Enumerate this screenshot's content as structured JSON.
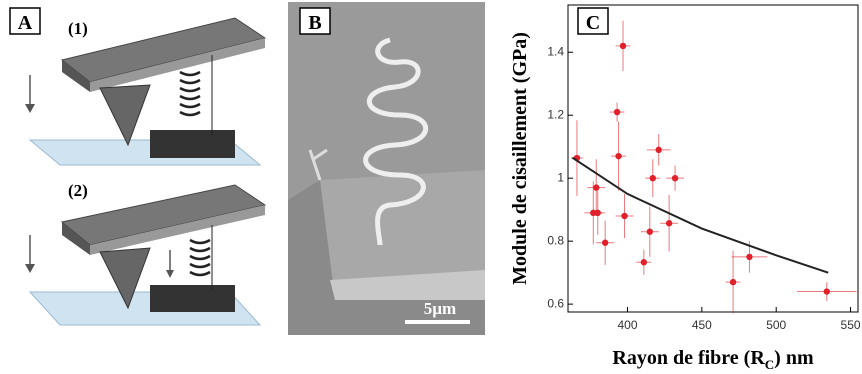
{
  "panels": {
    "a": {
      "label": "A",
      "steps": [
        "(1)",
        "(2)"
      ]
    },
    "b": {
      "label": "B",
      "scale_bar": "5µm"
    }
  },
  "chart_data": {
    "type": "scatter",
    "panel_label": "C",
    "x_label": [
      "Rayon de fibre (R",
      "C",
      ") nm"
    ],
    "y_label": "Module de cisaillement (GPa)",
    "xlim": [
      360,
      555
    ],
    "ylim": [
      0.575,
      1.55
    ],
    "xticks": [
      400,
      450,
      500,
      550
    ],
    "yticks": [
      0.6,
      0.8,
      1.0,
      1.2,
      1.4
    ],
    "series": [
      {
        "color": "#e0202a",
        "x": [
          366,
          397,
          393,
          394,
          379,
          377,
          380,
          385,
          398,
          415,
          417,
          421,
          432,
          428,
          411,
          471,
          482,
          534
        ],
        "values": [
          1.064,
          1.42,
          1.21,
          1.07,
          0.97,
          0.89,
          0.89,
          0.795,
          0.88,
          0.83,
          1.0,
          1.09,
          1.0,
          0.857,
          0.733,
          0.67,
          0.75,
          0.64
        ],
        "x_err": [
          4,
          5,
          5,
          5,
          6,
          6,
          5,
          6,
          6,
          6,
          5,
          8,
          6,
          6,
          5,
          5,
          12,
          20
        ],
        "y_err": [
          0.12,
          0.08,
          0.03,
          0.11,
          0.09,
          0.1,
          0.07,
          0.07,
          0.07,
          0.08,
          0.06,
          0.05,
          0.04,
          0.09,
          0.04,
          0.1,
          0.05,
          0.03
        ]
      },
      {
        "type": "line",
        "color": "#222",
        "x": [
          363,
          400,
          450,
          500,
          535
        ],
        "values": [
          1.065,
          0.95,
          0.84,
          0.755,
          0.7
        ]
      }
    ]
  }
}
